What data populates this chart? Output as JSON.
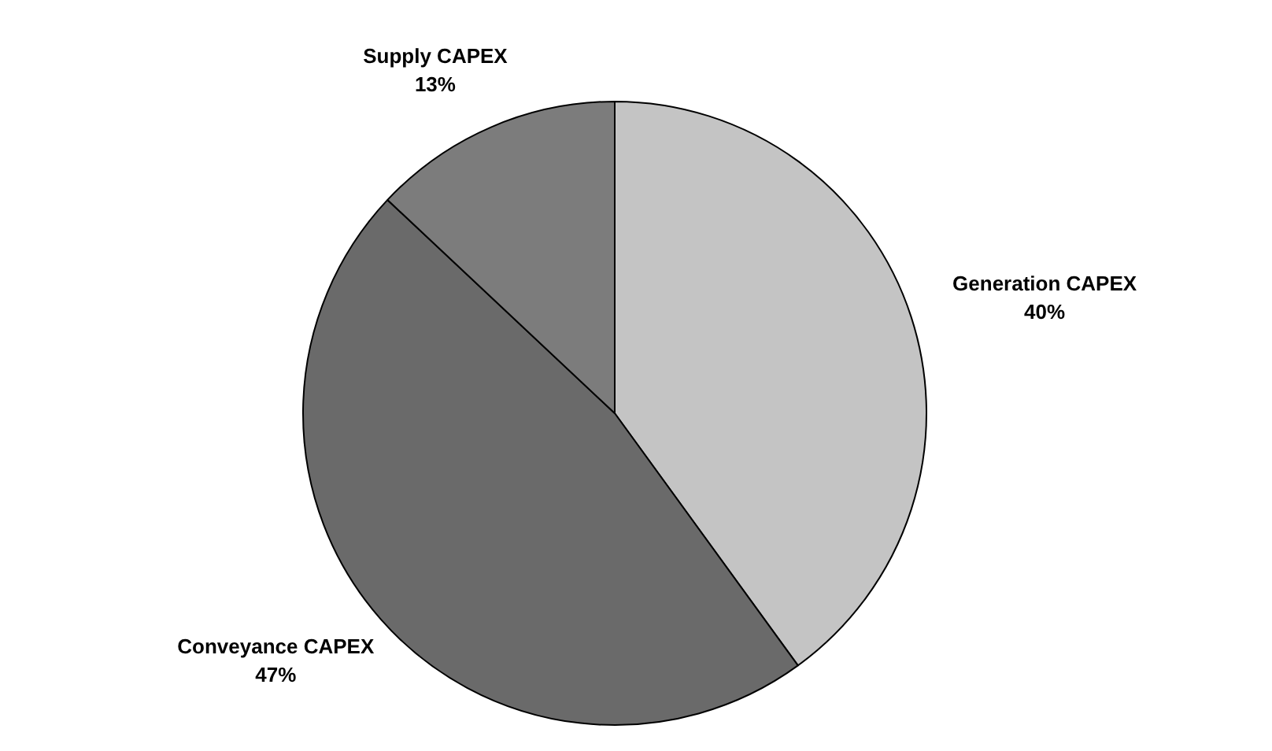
{
  "chart_data": {
    "type": "pie",
    "categories": [
      "Generation CAPEX",
      "Conveyance CAPEX",
      "Supply CAPEX"
    ],
    "values": [
      40,
      47,
      13
    ],
    "colors": [
      "#c4c4c4",
      "#6a6a6a",
      "#7c7c7c"
    ],
    "value_labels": [
      "40%",
      "47%",
      "13%"
    ]
  }
}
